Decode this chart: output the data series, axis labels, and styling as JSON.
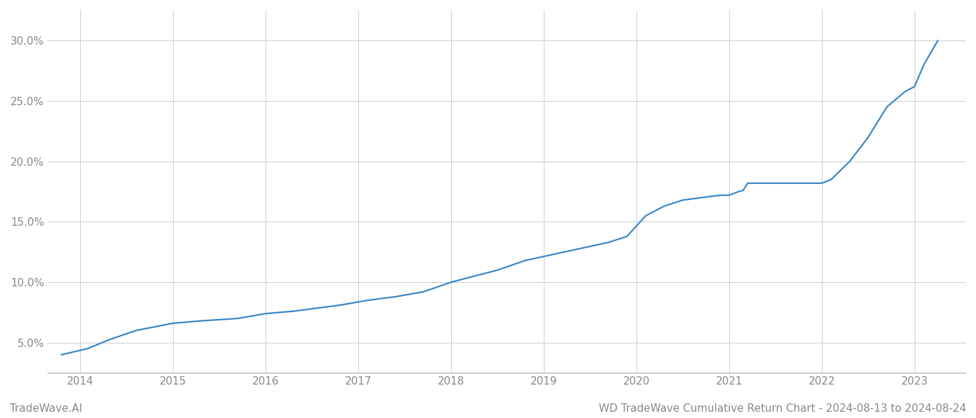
{
  "title": "WD TradeWave Cumulative Return Chart - 2024-08-13 to 2024-08-24",
  "watermark": "TradeWave.AI",
  "line_color": "#3a87c8",
  "background_color": "#ffffff",
  "grid_color": "#cccccc",
  "x_years": [
    2014,
    2015,
    2016,
    2017,
    2018,
    2019,
    2020,
    2021,
    2022,
    2023
  ],
  "x_values": [
    2013.8,
    2014.08,
    2014.3,
    2014.6,
    2015.0,
    2015.3,
    2015.7,
    2016.0,
    2016.3,
    2016.5,
    2016.8,
    2017.1,
    2017.4,
    2017.7,
    2018.0,
    2018.2,
    2018.5,
    2018.8,
    2019.1,
    2019.4,
    2019.7,
    2019.9,
    2020.1,
    2020.3,
    2020.5,
    2020.7,
    2020.9,
    2021.0,
    2021.1,
    2021.15,
    2021.2,
    2021.4,
    2021.7,
    2022.0,
    2022.1,
    2022.3,
    2022.5,
    2022.7,
    2022.9,
    2023.0,
    2023.1,
    2023.25
  ],
  "y_values": [
    0.04,
    0.045,
    0.052,
    0.06,
    0.066,
    0.068,
    0.07,
    0.074,
    0.076,
    0.078,
    0.081,
    0.085,
    0.088,
    0.092,
    0.1,
    0.104,
    0.11,
    0.118,
    0.123,
    0.128,
    0.133,
    0.138,
    0.155,
    0.163,
    0.168,
    0.17,
    0.172,
    0.172,
    0.175,
    0.176,
    0.182,
    0.182,
    0.182,
    0.182,
    0.185,
    0.2,
    0.22,
    0.245,
    0.258,
    0.262,
    0.28,
    0.3
  ],
  "ylim": [
    0.025,
    0.325
  ],
  "xlim": [
    2013.65,
    2023.55
  ],
  "yticks": [
    0.05,
    0.1,
    0.15,
    0.2,
    0.25,
    0.3
  ],
  "ytick_labels": [
    "5.0%",
    "10.0%",
    "15.0%",
    "20.0%",
    "25.0%",
    "30.0%"
  ],
  "title_fontsize": 11,
  "watermark_fontsize": 11,
  "tick_label_color": "#888888",
  "tick_label_fontsize": 11,
  "line_width": 1.6
}
